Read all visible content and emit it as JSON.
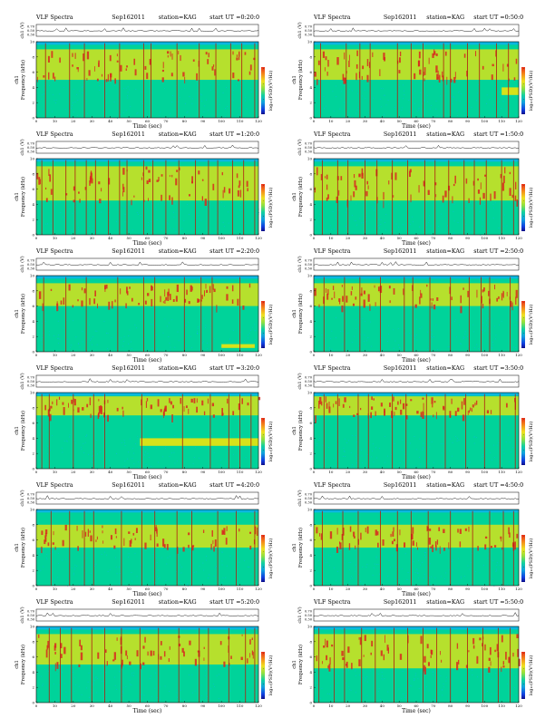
{
  "header": {
    "title": "VLF Spectra",
    "date": "Sep162011",
    "station": "station=KAG",
    "start_prefix": "start  UT ="
  },
  "labels": {
    "ch_axis": "ch1 (V)",
    "ch_row_label": "ch1",
    "freq_axis": "Frequency (kHz)",
    "time_axis": "Time (sec)",
    "colorbar_label": "log₁₀(PSD)(V²/Hz)"
  },
  "chart_data": [
    {
      "type": "heatmap",
      "start_ut": "0:20:0",
      "xlim": [
        0,
        120
      ],
      "ylim": [
        0,
        10
      ],
      "ch_ylim": [
        0.3,
        0.7
      ],
      "x_ticks": [
        0,
        10,
        20,
        30,
        40,
        50,
        60,
        70,
        80,
        90,
        100,
        110,
        120
      ],
      "y_ticks": [
        0,
        2,
        4,
        6,
        8,
        10
      ],
      "ch_ticks": [
        "0.70",
        "0.50",
        "0.30"
      ],
      "cb_ticks": [
        "-",
        "-",
        "-",
        "-"
      ],
      "band_khz": [
        5,
        9
      ],
      "spike_times": [
        5,
        18,
        26,
        37,
        45,
        58,
        62,
        76,
        88,
        97,
        105,
        111,
        118
      ],
      "lower_band": null
    },
    {
      "type": "heatmap",
      "start_ut": "0:50:0",
      "xlim": [
        0,
        120
      ],
      "ylim": [
        0,
        10
      ],
      "ch_ylim": [
        0.3,
        0.7
      ],
      "x_ticks": [
        0,
        10,
        20,
        30,
        40,
        50,
        60,
        70,
        80,
        90,
        100,
        110,
        120
      ],
      "y_ticks": [
        0,
        2,
        4,
        6,
        8,
        10
      ],
      "ch_ticks": [
        "0.70",
        "0.50",
        "0.30"
      ],
      "cb_ticks": [
        "-",
        "-",
        "-",
        "-"
      ],
      "band_khz": [
        5,
        9
      ],
      "spike_times": [
        4,
        19,
        27,
        33,
        49,
        57,
        64,
        76,
        80,
        90,
        97,
        107,
        114
      ],
      "lower_band": [
        110,
        120,
        3,
        4
      ]
    },
    {
      "type": "heatmap",
      "start_ut": "1:20:0",
      "xlim": [
        0,
        120
      ],
      "ylim": [
        0,
        10
      ],
      "ch_ylim": [
        0.3,
        0.7
      ],
      "x_ticks": [
        0,
        10,
        20,
        30,
        40,
        50,
        60,
        70,
        80,
        90,
        100,
        110,
        120
      ],
      "y_ticks": [
        0,
        2,
        4,
        6,
        8,
        10
      ],
      "ch_ticks": [
        "0.70",
        "0.50",
        "0.30"
      ],
      "cb_ticks": [
        "-",
        "-",
        "-",
        "-"
      ],
      "band_khz": [
        4.5,
        9
      ],
      "spike_times": [
        3,
        9,
        16,
        21,
        27,
        32,
        39,
        45,
        49,
        58,
        63,
        70,
        77,
        86,
        93,
        98,
        106,
        112,
        118
      ],
      "lower_band": null
    },
    {
      "type": "heatmap",
      "start_ut": "1:50:0",
      "xlim": [
        0,
        120
      ],
      "ylim": [
        0,
        10
      ],
      "ch_ylim": [
        0.3,
        0.7
      ],
      "x_ticks": [
        0,
        10,
        20,
        30,
        40,
        50,
        60,
        70,
        80,
        90,
        100,
        110,
        120
      ],
      "y_ticks": [
        0,
        2,
        4,
        6,
        8,
        10
      ],
      "ch_ticks": [
        "0.70",
        "0.50",
        "0.30"
      ],
      "cb_ticks": [
        "-",
        "-",
        "-",
        "-"
      ],
      "band_khz": [
        4.5,
        9
      ],
      "spike_times": [
        5,
        14,
        20,
        30,
        37,
        46,
        55,
        65,
        71,
        79,
        88,
        94,
        101,
        110,
        117
      ],
      "lower_band": null
    },
    {
      "type": "heatmap",
      "start_ut": "2:20:0",
      "xlim": [
        0,
        120
      ],
      "ylim": [
        0,
        10
      ],
      "ch_ylim": [
        0.3,
        0.7
      ],
      "x_ticks": [
        0,
        10,
        20,
        30,
        40,
        50,
        60,
        70,
        80,
        90,
        100,
        110,
        120
      ],
      "y_ticks": [
        0,
        2,
        4,
        6,
        8,
        10
      ],
      "ch_ticks": [
        "0.70",
        "0.50",
        "0.30"
      ],
      "cb_ticks": [
        "-",
        "-",
        "-",
        "-"
      ],
      "band_khz": [
        6,
        9
      ],
      "spike_times": [
        4,
        16,
        27,
        44,
        58,
        64,
        80,
        89,
        95,
        110
      ],
      "lower_band": [
        100,
        118,
        0.5,
        1
      ]
    },
    {
      "type": "heatmap",
      "start_ut": "2:50:0",
      "xlim": [
        0,
        120
      ],
      "ylim": [
        0,
        10
      ],
      "ch_ylim": [
        0.3,
        0.7
      ],
      "x_ticks": [
        0,
        10,
        20,
        30,
        40,
        50,
        60,
        70,
        80,
        90,
        100,
        110,
        120
      ],
      "y_ticks": [
        0,
        2,
        4,
        6,
        8,
        10
      ],
      "ch_ticks": [
        "0.70",
        "0.50",
        "0.30"
      ],
      "cb_ticks": [
        "-",
        "-",
        "-",
        "-"
      ],
      "band_khz": [
        6,
        9
      ],
      "spike_times": [
        6,
        18,
        27,
        39,
        53,
        58,
        68,
        80,
        91,
        98,
        103,
        115
      ],
      "lower_band": null
    },
    {
      "type": "heatmap",
      "start_ut": "3:20:0",
      "xlim": [
        0,
        120
      ],
      "ylim": [
        0,
        10
      ],
      "ch_ylim": [
        0.3,
        0.7
      ],
      "x_ticks": [
        0,
        10,
        20,
        30,
        40,
        50,
        60,
        70,
        80,
        90,
        100,
        110,
        120
      ],
      "y_ticks": [
        0,
        2,
        4,
        6,
        8,
        10
      ],
      "ch_ticks": [
        "0.70",
        "0.50",
        "0.30"
      ],
      "cb_ticks": [
        "-",
        "-",
        "-",
        "-"
      ],
      "band_khz": [
        7,
        9.5
      ],
      "spike_times": [
        3,
        7,
        20,
        31,
        37,
        57,
        79,
        94,
        104,
        110,
        116
      ],
      "lower_band": [
        56,
        120,
        3,
        4
      ]
    },
    {
      "type": "heatmap",
      "start_ut": "3:50:0",
      "xlim": [
        0,
        120
      ],
      "ylim": [
        0,
        10
      ],
      "ch_ylim": [
        0.3,
        0.7
      ],
      "x_ticks": [
        0,
        10,
        20,
        30,
        40,
        50,
        60,
        70,
        80,
        90,
        100,
        110,
        120
      ],
      "y_ticks": [
        0,
        2,
        4,
        6,
        8,
        10
      ],
      "ch_ticks": [
        "0.70",
        "0.50",
        "0.30"
      ],
      "cb_ticks": [
        "-",
        "-",
        "-",
        "-"
      ],
      "band_khz": [
        7,
        9.5
      ],
      "spike_times": [
        6,
        14,
        26,
        32,
        46,
        54,
        66,
        77,
        89,
        100,
        109,
        118
      ],
      "lower_band": null
    },
    {
      "type": "heatmap",
      "start_ut": "4:20:0",
      "xlim": [
        0,
        120
      ],
      "ylim": [
        0,
        10
      ],
      "ch_ylim": [
        0.3,
        0.7
      ],
      "x_ticks": [
        0,
        10,
        20,
        30,
        40,
        50,
        60,
        70,
        80,
        90,
        100,
        110,
        120
      ],
      "y_ticks": [
        0,
        2,
        4,
        6,
        8,
        10
      ],
      "ch_ticks": [
        "0.70",
        "0.50",
        "0.30"
      ],
      "cb_ticks": [
        "-",
        "-",
        "-",
        "-"
      ],
      "band_khz": [
        5,
        8
      ],
      "spike_times": [
        8,
        18,
        26,
        31,
        46,
        57,
        64,
        76,
        84,
        98,
        108,
        118
      ],
      "lower_band": null
    },
    {
      "type": "heatmap",
      "start_ut": "4:50:0",
      "xlim": [
        0,
        120
      ],
      "ylim": [
        0,
        10
      ],
      "ch_ylim": [
        0.3,
        0.7
      ],
      "x_ticks": [
        0,
        10,
        20,
        30,
        40,
        50,
        60,
        70,
        80,
        90,
        100,
        110,
        120
      ],
      "y_ticks": [
        0,
        2,
        4,
        6,
        8,
        10
      ],
      "ch_ticks": [
        "0.70",
        "0.50",
        "0.30"
      ],
      "cb_ticks": [
        "-",
        "-",
        "-",
        "-"
      ],
      "band_khz": [
        5,
        8
      ],
      "spike_times": [
        5,
        17,
        26,
        39,
        49,
        57,
        67,
        80,
        93,
        103,
        111,
        117
      ],
      "lower_band": null
    },
    {
      "type": "heatmap",
      "start_ut": "5:20:0",
      "xlim": [
        0,
        120
      ],
      "ylim": [
        0,
        10
      ],
      "ch_ylim": [
        0.3,
        0.7
      ],
      "x_ticks": [
        0,
        10,
        20,
        30,
        40,
        50,
        60,
        70,
        80,
        90,
        100,
        110,
        120
      ],
      "y_ticks": [
        0,
        2,
        4,
        6,
        8,
        10
      ],
      "ch_ticks": [
        "0.70",
        "0.50",
        "0.30"
      ],
      "cb_ticks": [
        "-",
        "-",
        "-",
        "-"
      ],
      "band_khz": [
        5,
        9
      ],
      "spike_times": [
        7,
        13,
        19,
        30,
        37,
        46,
        56,
        66,
        77,
        88,
        93,
        104,
        113,
        118
      ],
      "lower_band": null
    },
    {
      "type": "heatmap",
      "start_ut": "5:50:0",
      "xlim": [
        0,
        120
      ],
      "ylim": [
        0,
        10
      ],
      "ch_ylim": [
        0.3,
        0.7
      ],
      "x_ticks": [
        0,
        10,
        20,
        30,
        40,
        50,
        60,
        70,
        80,
        90,
        100,
        110,
        120
      ],
      "y_ticks": [
        0,
        2,
        4,
        6,
        8,
        10
      ],
      "ch_ticks": [
        "0.70",
        "0.50",
        "0.30"
      ],
      "cb_ticks": [
        "-",
        "-",
        "-",
        "-"
      ],
      "band_khz": [
        4.5,
        9
      ],
      "spike_times": [
        3,
        12,
        18,
        28,
        36,
        47,
        55,
        64,
        72,
        80,
        90,
        99,
        108,
        115
      ],
      "lower_band": null
    }
  ],
  "colors": {
    "background": "#00d39a",
    "noise": "#0bb7e0",
    "band_yellow": "#d6e21a",
    "band_red": "#d8281e",
    "spike": "#b02010",
    "colormap": [
      "#e8301a",
      "#f58a1a",
      "#f0e020",
      "#90e040",
      "#10d0a0",
      "#10a0e0",
      "#1040e0",
      "#101090"
    ]
  }
}
